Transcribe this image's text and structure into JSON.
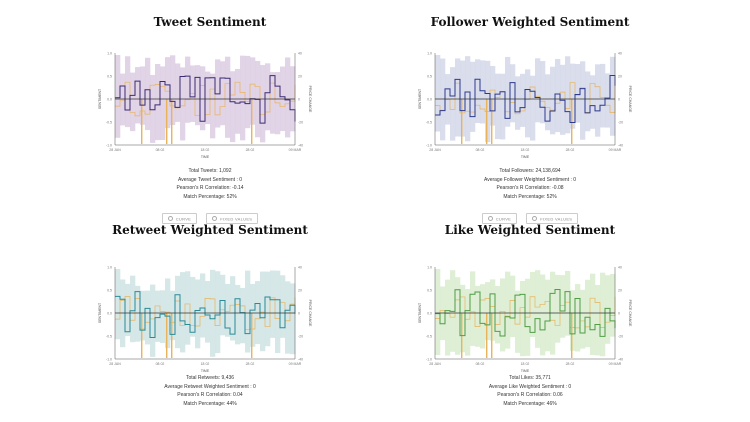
{
  "colors": {
    "orange": "#e8b35a",
    "zero_line": "#333333",
    "axis": "#555555"
  },
  "panels": [
    {
      "title": "Tweet Sentiment",
      "fill_color": "#dccde3",
      "line_color": "#3b2a73",
      "stats": [
        "Total Tweets: 1,092",
        "Average Tweet Sentiment : 0",
        "Pearson's R Correlation: -0.14",
        "Match Percentage: 52%"
      ],
      "controls": [
        "CURVE",
        "FIXED VALUES"
      ]
    },
    {
      "title": "Follower Weighted Sentiment",
      "fill_color": "#d3d7e8",
      "line_color": "#2c3a8c",
      "stats": [
        "Total Followers: 24,138,694",
        "Average Follower Weighted Sentiment : 0",
        "Pearson's R Correlation: -0.08",
        "Match Percentage: 52%"
      ],
      "controls": [
        "CURVE",
        "FIXED VALUES"
      ]
    },
    {
      "title": "Retweet Weighted Sentiment",
      "fill_color": "#cfe3e4",
      "line_color": "#2b8a96",
      "stats": [
        "Total Retweets: 9,436",
        "Average Retweet Weighted Sentiment : 0",
        "Pearson's R Correlation: 0.04",
        "Match Percentage: 44%"
      ],
      "controls": []
    },
    {
      "title": "Like Weighted Sentiment",
      "fill_color": "#d8eccf",
      "line_color": "#4e9e44",
      "stats": [
        "Total Likes: 35,771",
        "Average Like Weighted Sentiment : 0",
        "Pearson's R Correlation: 0.06",
        "Match Percentage: 46%"
      ],
      "controls": []
    }
  ],
  "axes": {
    "y_left_label": "SENTIMENT",
    "y_right_label": "PRICE CHANGE",
    "x_label": "TIME",
    "y_left_ticks": [
      "1.0",
      "0.5",
      "0.0",
      "-0.5",
      "-1.0"
    ],
    "y_right_ticks": [
      "40",
      "20",
      "0",
      "-20",
      "-40"
    ],
    "x_ticks": [
      "28 JAN",
      "08 02",
      "18 02",
      "28 02",
      "09 MAR"
    ]
  }
}
